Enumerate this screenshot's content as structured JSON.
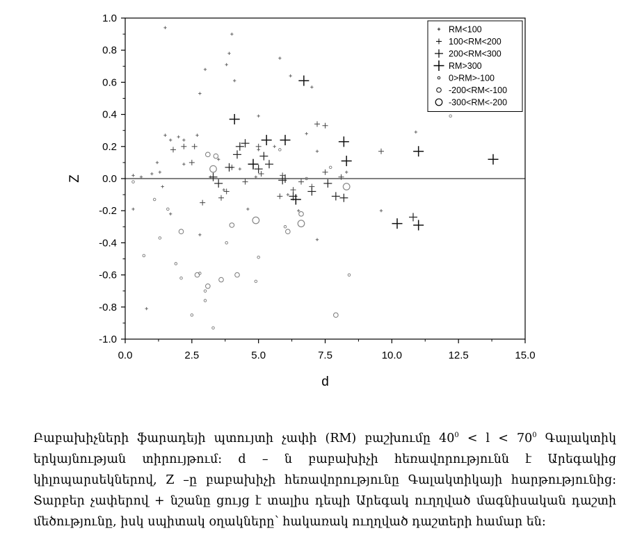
{
  "chart_data": {
    "type": "scatter",
    "xlabel": "d",
    "ylabel": "Z",
    "xlim": [
      0,
      15
    ],
    "ylim": [
      -1.0,
      1.0
    ],
    "x_ticks": [
      "0.0",
      "2.5",
      "5.0",
      "7.5",
      "10.0",
      "12.5",
      "15.0"
    ],
    "y_ticks": [
      "1.0",
      "0.8",
      "0.6",
      "0.4",
      "0.2",
      "0.0",
      "-0.2",
      "-0.4",
      "-0.6",
      "-0.8",
      "-1.0"
    ],
    "grid": false,
    "legend_position": "top-right",
    "series": [
      {
        "name": "RM<100",
        "marker": "plus-xs",
        "points": [
          [
            1.5,
            0.94
          ],
          [
            4.0,
            0.9
          ],
          [
            3.0,
            0.68
          ],
          [
            3.9,
            0.78
          ],
          [
            3.8,
            0.71
          ],
          [
            2.8,
            0.53
          ],
          [
            4.1,
            0.61
          ],
          [
            5.8,
            0.75
          ],
          [
            6.2,
            0.64
          ],
          [
            7.0,
            0.57
          ],
          [
            5.0,
            0.39
          ],
          [
            1.5,
            0.27
          ],
          [
            2.0,
            0.26
          ],
          [
            2.2,
            0.24
          ],
          [
            1.7,
            0.24
          ],
          [
            1.2,
            0.1
          ],
          [
            1.0,
            0.03
          ],
          [
            0.6,
            0.01
          ],
          [
            0.3,
            0.02
          ],
          [
            1.3,
            0.04
          ],
          [
            2.2,
            0.09
          ],
          [
            3.5,
            0.12
          ],
          [
            4.3,
            0.06
          ],
          [
            5.0,
            0.18
          ],
          [
            4.9,
            0.01
          ],
          [
            5.6,
            0.2
          ],
          [
            6.1,
            -0.1
          ],
          [
            6.5,
            -0.2
          ],
          [
            7.2,
            -0.38
          ],
          [
            8.3,
            0.04
          ],
          [
            9.6,
            -0.2
          ],
          [
            10.9,
            0.29
          ],
          [
            1.4,
            -0.05
          ],
          [
            1.7,
            -0.22
          ],
          [
            0.8,
            -0.81
          ],
          [
            0.3,
            -0.19
          ],
          [
            2.8,
            -0.35
          ],
          [
            3.7,
            -0.07
          ],
          [
            4.6,
            -0.19
          ],
          [
            3.2,
            0.01
          ],
          [
            2.7,
            0.27
          ],
          [
            7.2,
            0.17
          ],
          [
            6.8,
            0.28
          ]
        ]
      },
      {
        "name": "100<RM<200",
        "marker": "plus-s",
        "points": [
          [
            2.2,
            0.2
          ],
          [
            2.5,
            0.1
          ],
          [
            1.8,
            0.18
          ],
          [
            3.8,
            -0.08
          ],
          [
            4.0,
            0.07
          ],
          [
            5.1,
            0.03
          ],
          [
            6.3,
            -0.07
          ],
          [
            6.6,
            -0.02
          ],
          [
            7.0,
            -0.05
          ],
          [
            7.5,
            0.04
          ],
          [
            8.1,
            0.01
          ],
          [
            9.6,
            0.17
          ],
          [
            5.0,
            0.2
          ],
          [
            3.6,
            -0.12
          ],
          [
            2.9,
            -0.15
          ],
          [
            7.2,
            0.34
          ],
          [
            7.5,
            0.33
          ],
          [
            2.6,
            0.2
          ],
          [
            5.9,
            0.02
          ],
          [
            4.5,
            -0.02
          ],
          [
            5.8,
            -0.11
          ]
        ]
      },
      {
        "name": "200<RM<300",
        "marker": "plus-m",
        "points": [
          [
            3.3,
            0.01
          ],
          [
            4.2,
            0.15
          ],
          [
            4.5,
            0.22
          ],
          [
            5.2,
            0.14
          ],
          [
            5.4,
            0.09
          ],
          [
            5.9,
            -0.01
          ],
          [
            6.3,
            -0.11
          ],
          [
            7.0,
            -0.08
          ],
          [
            7.6,
            -0.03
          ],
          [
            7.9,
            -0.11
          ],
          [
            8.2,
            -0.12
          ],
          [
            10.8,
            -0.24
          ],
          [
            4.3,
            0.2
          ],
          [
            3.9,
            0.07
          ],
          [
            5.0,
            0.06
          ],
          [
            6.0,
            0.0
          ],
          [
            3.5,
            -0.03
          ]
        ]
      },
      {
        "name": "RM>300",
        "marker": "plus-l",
        "points": [
          [
            4.1,
            0.37
          ],
          [
            6.7,
            0.61
          ],
          [
            5.3,
            0.24
          ],
          [
            6.0,
            0.24
          ],
          [
            8.2,
            0.23
          ],
          [
            8.3,
            0.11
          ],
          [
            11.0,
            0.17
          ],
          [
            13.8,
            0.12
          ],
          [
            10.2,
            -0.28
          ],
          [
            11.0,
            -0.29
          ],
          [
            4.8,
            0.09
          ],
          [
            6.4,
            -0.13
          ]
        ]
      },
      {
        "name": "0>RM>-100",
        "marker": "circle-xs",
        "points": [
          [
            0.3,
            -0.02
          ],
          [
            0.7,
            -0.48
          ],
          [
            1.1,
            -0.13
          ],
          [
            1.6,
            -0.19
          ],
          [
            1.3,
            -0.37
          ],
          [
            2.1,
            -0.62
          ],
          [
            2.5,
            -0.85
          ],
          [
            3.0,
            -0.76
          ],
          [
            3.3,
            -0.93
          ],
          [
            3.8,
            -0.4
          ],
          [
            4.9,
            -0.64
          ],
          [
            5.0,
            -0.49
          ],
          [
            6.0,
            -0.3
          ],
          [
            6.8,
            0.0
          ],
          [
            8.4,
            -0.6
          ],
          [
            12.2,
            0.39
          ],
          [
            5.8,
            0.18
          ],
          [
            7.7,
            0.07
          ],
          [
            3.0,
            -0.7
          ],
          [
            1.9,
            -0.53
          ],
          [
            2.8,
            -0.59
          ]
        ]
      },
      {
        "name": "-200<RM<-100",
        "marker": "circle-s",
        "points": [
          [
            2.1,
            -0.33
          ],
          [
            2.7,
            -0.6
          ],
          [
            3.1,
            -0.67
          ],
          [
            3.6,
            -0.63
          ],
          [
            4.2,
            -0.6
          ],
          [
            4.0,
            -0.29
          ],
          [
            6.1,
            -0.33
          ],
          [
            6.6,
            -0.22
          ],
          [
            7.9,
            -0.85
          ],
          [
            3.1,
            0.15
          ],
          [
            3.4,
            0.14
          ]
        ]
      },
      {
        "name": "-300<RM<-200",
        "marker": "circle-m",
        "points": [
          [
            3.3,
            0.06
          ],
          [
            4.9,
            -0.26
          ],
          [
            6.6,
            -0.28
          ],
          [
            8.3,
            -0.05
          ]
        ]
      }
    ]
  },
  "caption": {
    "l1_a": "Բաբախիչների ֆարադեյի պտույտի չափի (RM) բաշխումը 40",
    "l1_sup1": "0",
    "l1_b": " < l < 70",
    "l1_sup2": "0",
    "l1_c": " Գալակտիկ",
    "l2": "երկայնության տիրույթում: d – ն բաբախիչի հեռավորությունն է Արեգակից",
    "l3": "կիլոպարսեկներով, Z –ը բաբախիչի հեռավորությունը Գալակտիկայի հարթությունից:",
    "l4": "Տարբեր չափերով + նշանը ցույց է տալիս դեպի Արեգակ ուղղված մագնիսական դաշտի",
    "l5": "մեծությունը, իսկ սպիտակ օղակները՝ հակառակ ուղղված դաշտերի համար են:"
  }
}
